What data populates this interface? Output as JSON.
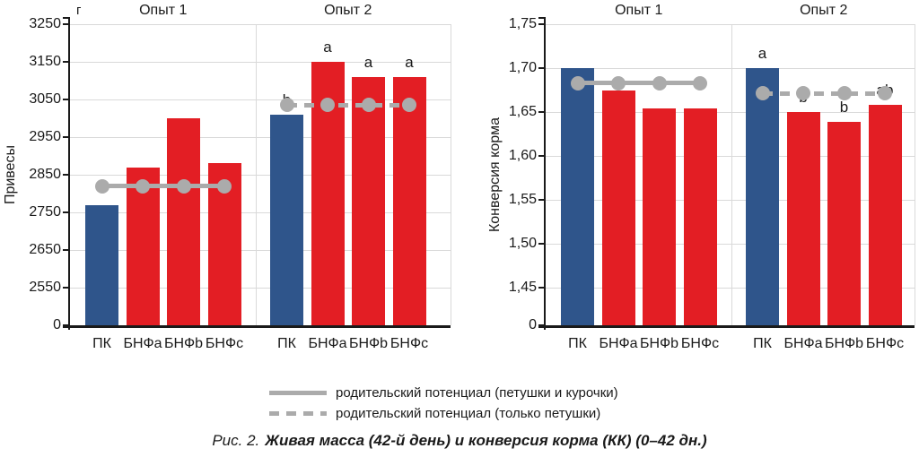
{
  "colors": {
    "bar_control": "#2F558B",
    "bar_test": "#E31E24",
    "line": "#ABABAB",
    "grid": "#D9D9D9",
    "axis": "#1A1A1A"
  },
  "chart_data": [
    {
      "type": "bar",
      "unit": "г",
      "ylabel": "Привесы",
      "broken_axis": true,
      "grid": true,
      "yticks": [
        {
          "label": "3250",
          "value": 3250
        },
        {
          "label": "3150",
          "value": 3150
        },
        {
          "label": "3050",
          "value": 3050
        },
        {
          "label": "2950",
          "value": 2950
        },
        {
          "label": "2850",
          "value": 2850
        },
        {
          "label": "2750",
          "value": 2750
        },
        {
          "label": "2650",
          "value": 2650
        },
        {
          "label": "2550",
          "value": 2550
        },
        {
          "label": "0",
          "value": 0
        }
      ],
      "groups": [
        {
          "name": "Опыт 1",
          "bars": [
            {
              "label": "ПК",
              "value": 2770,
              "role": "bar_control",
              "letter": ""
            },
            {
              "label": "БНФа",
              "value": 2870,
              "role": "bar_test",
              "letter": ""
            },
            {
              "label": "БНФb",
              "value": 3000,
              "role": "bar_test",
              "letter": ""
            },
            {
              "label": "БНФс",
              "value": 2880,
              "role": "bar_test",
              "letter": ""
            }
          ],
          "line": {
            "value": 2820,
            "style": "solid",
            "name": "родительский потенциал (петушки и курочки)"
          }
        },
        {
          "name": "Опыт 2",
          "bars": [
            {
              "label": "ПК",
              "value": 3010,
              "role": "bar_control",
              "letter": "b"
            },
            {
              "label": "БНФа",
              "value": 3150,
              "role": "bar_test",
              "letter": "a"
            },
            {
              "label": "БНФb",
              "value": 3110,
              "role": "bar_test",
              "letter": "a"
            },
            {
              "label": "БНФс",
              "value": 3110,
              "role": "bar_test",
              "letter": "a"
            }
          ],
          "line": {
            "value": 3035,
            "style": "dashed",
            "name": "родительский потенциал (только петушки)"
          }
        }
      ]
    },
    {
      "type": "bar",
      "unit": "",
      "ylabel": "Конверсия корма",
      "broken_axis": true,
      "grid": true,
      "yticks": [
        {
          "label": "1,75",
          "value": 1.75
        },
        {
          "label": "1,70",
          "value": 1.7
        },
        {
          "label": "1,65",
          "value": 1.65
        },
        {
          "label": "1,60",
          "value": 1.6
        },
        {
          "label": "1,55",
          "value": 1.55
        },
        {
          "label": "1,50",
          "value": 1.5
        },
        {
          "label": "1,45",
          "value": 1.45
        },
        {
          "label": "0",
          "value": 0
        }
      ],
      "groups": [
        {
          "name": "Опыт 1",
          "bars": [
            {
              "label": "ПК",
              "value": 1.7,
              "role": "bar_control",
              "letter": ""
            },
            {
              "label": "БНФа",
              "value": 1.675,
              "role": "bar_test",
              "letter": ""
            },
            {
              "label": "БНФb",
              "value": 1.654,
              "role": "bar_test",
              "letter": ""
            },
            {
              "label": "БНФс",
              "value": 1.654,
              "role": "bar_test",
              "letter": ""
            }
          ],
          "line": {
            "value": 1.683,
            "style": "solid",
            "name": "родительский потенциал (петушки и курочки)"
          }
        },
        {
          "name": "Опыт 2",
          "bars": [
            {
              "label": "ПК",
              "value": 1.7,
              "role": "bar_control",
              "letter": "a"
            },
            {
              "label": "БНФа",
              "value": 1.65,
              "role": "bar_test",
              "letter": "b"
            },
            {
              "label": "БНФb",
              "value": 1.639,
              "role": "bar_test",
              "letter": "b"
            },
            {
              "label": "БНФс",
              "value": 1.658,
              "role": "bar_test",
              "letter": "ab"
            }
          ],
          "line": {
            "value": 1.671,
            "style": "dashed",
            "name": "родительский потенциал (только петушки)"
          }
        }
      ]
    }
  ],
  "legend": {
    "items": [
      {
        "style": "solid",
        "label": "родительский потенциал (петушки и курочки)"
      },
      {
        "style": "dashed",
        "label": "родительский потенциал (только петушки)"
      }
    ]
  },
  "caption": {
    "prefix": "Рис. 2.",
    "title": "Живая масса (42-й день) и конверсия корма (КК) (0–42 дн.)"
  }
}
